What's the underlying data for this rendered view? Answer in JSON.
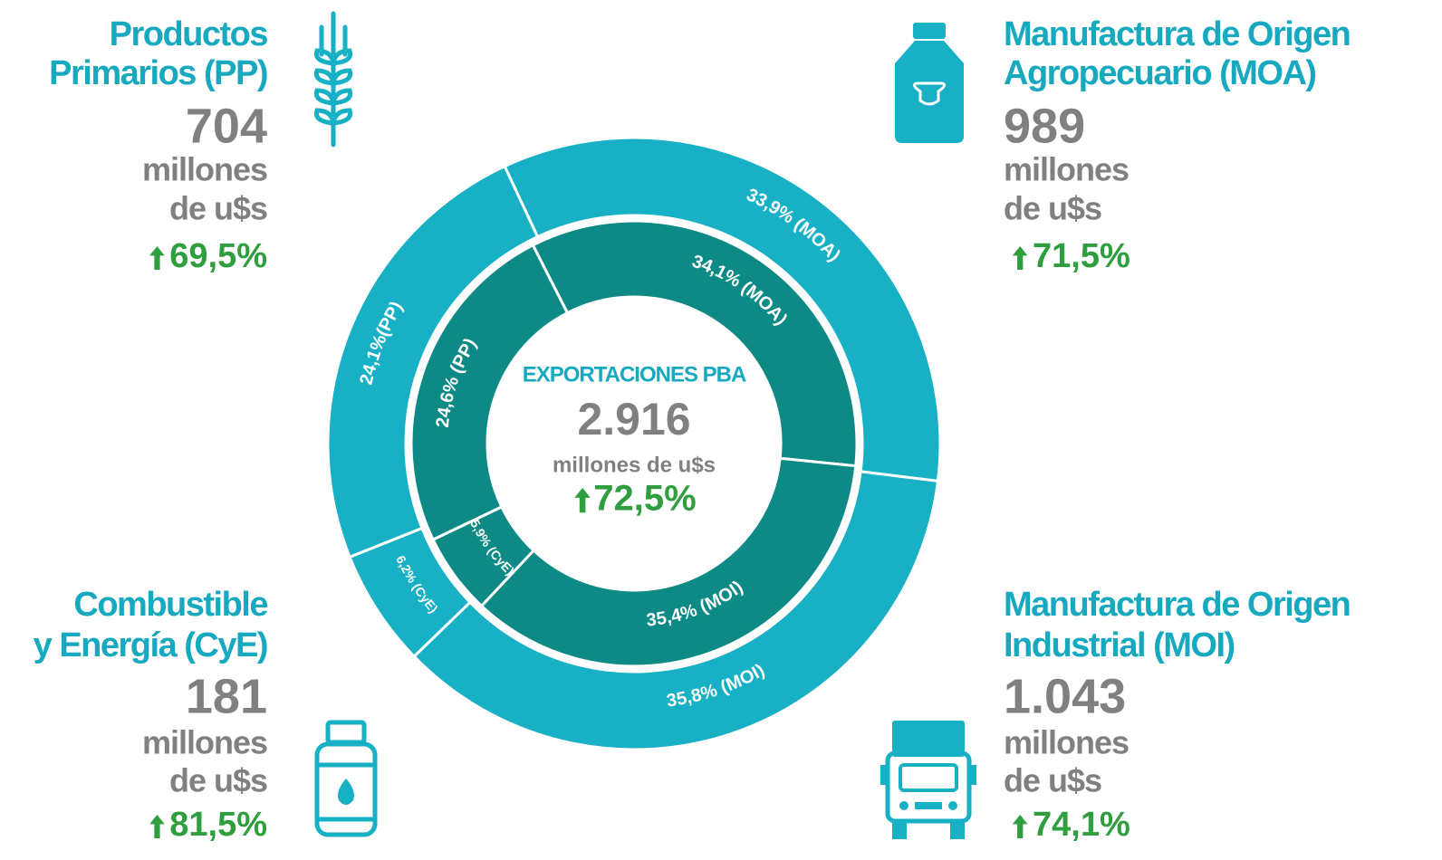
{
  "chart_data": {
    "type": "donut",
    "center": {
      "title": "EXPORTACIONES PBA",
      "value": "2.916",
      "unit": "millones de u$s",
      "change": "72,5%"
    },
    "series": [
      {
        "color": "#17b0c5",
        "values": [
          33.9,
          35.8,
          6.2,
          24.1
        ],
        "value_labels": [
          "33,9% (MOA)",
          "35,8% (MOI)",
          "6,2% (CyE)",
          "24,1%(PP)"
        ]
      },
      {
        "color": "#0e8a86",
        "values": [
          34.1,
          35.4,
          5.9,
          24.6
        ],
        "value_labels": [
          "34,1% (MOA)",
          "35,4% (MOI)",
          "5,9% (CyE)",
          "24,6% (PP)"
        ]
      }
    ]
  },
  "panels": [
    {
      "title": [
        "Productos",
        "Primarios (PP)"
      ],
      "value": "704",
      "unit": [
        "millones",
        "de u$s"
      ],
      "change": "69,5%"
    },
    {
      "title": [
        "Manufactura de Origen",
        "Agropecuario (MOA)"
      ],
      "value": "989",
      "unit": [
        "millones",
        "de u$s"
      ],
      "change": "71,5%"
    },
    {
      "title": [
        "Combustible",
        "y Energía (CyE)"
      ],
      "value": "181",
      "unit": [
        "millones",
        "de u$s"
      ],
      "change": "81,5%"
    },
    {
      "title": [
        "Manufactura de Origen",
        "Industrial (MOI)"
      ],
      "value": "1.043",
      "unit": [
        "millones",
        "de u$s"
      ],
      "change": "74,1%"
    }
  ]
}
